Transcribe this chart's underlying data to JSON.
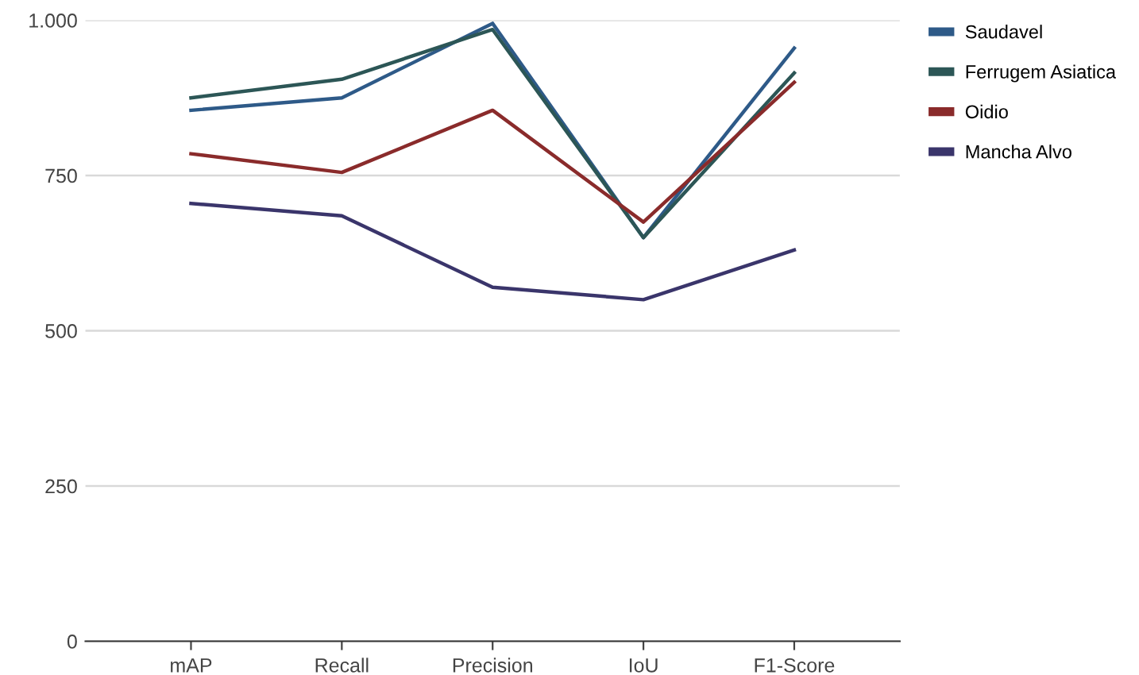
{
  "chart_data": {
    "type": "line",
    "categories": [
      "mAP",
      "Recall",
      "Precision",
      "IoU",
      "F1-Score"
    ],
    "series": [
      {
        "name": "Saudavel",
        "color": "#2e5a88",
        "values": [
          855,
          875,
          995,
          650,
          955
        ]
      },
      {
        "name": "Ferrugem Asiatica",
        "color": "#2c5656",
        "values": [
          875,
          905,
          985,
          650,
          915
        ]
      },
      {
        "name": "Oidio",
        "color": "#8a2b2b",
        "values": [
          785,
          755,
          855,
          675,
          900
        ]
      },
      {
        "name": "Mancha Alvo",
        "color": "#3a356b",
        "values": [
          705,
          685,
          570,
          550,
          630
        ]
      }
    ],
    "ylim": [
      0,
      1000
    ],
    "yticks": [
      0,
      250,
      500,
      750,
      {
        "value": 1000,
        "label": "1.000"
      }
    ],
    "grid": "y",
    "legend": "top right",
    "marker": "none",
    "line_style": "solid"
  }
}
